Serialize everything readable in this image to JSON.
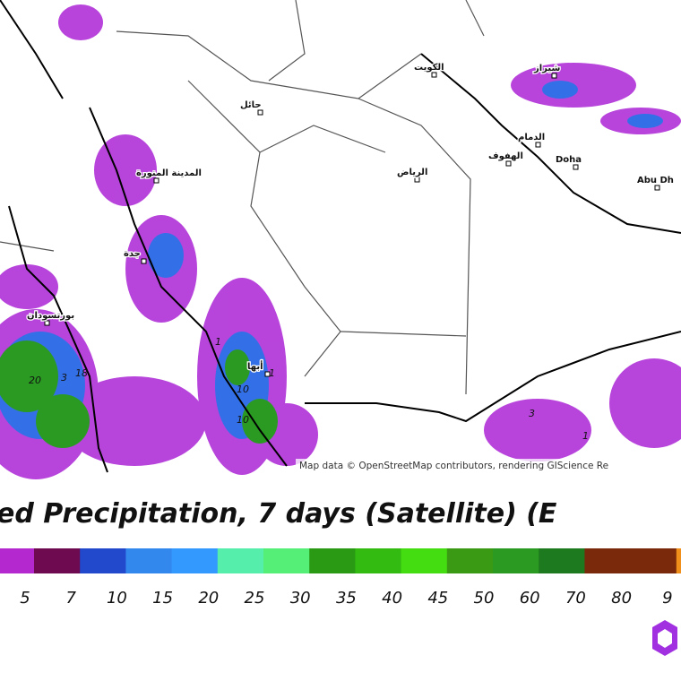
{
  "map": {
    "labels": [
      "المدينة المنورة",
      "الرياض",
      "حائل",
      "بورتسودان",
      "جدة",
      "الكويت",
      "الدمام",
      "الهفوف",
      "Doha",
      "Abu Dh",
      "شيراز",
      "أبها"
    ],
    "contour_labels": [
      "20",
      "3",
      "18",
      "10",
      "10",
      "1",
      "3",
      "1",
      "1"
    ],
    "attribution": "Map data © OpenStreetMap contributors, rendering GIScience Re"
  },
  "title": "ed Precipitation, 7 days (Satellite) (E",
  "legend": {
    "colors": [
      "#b428d0",
      "#6e0a50",
      "#2248cc",
      "#3388ee",
      "#3399ff",
      "#55eeaa",
      "#55ee77",
      "#2a9a14",
      "#33bb11",
      "#44dd11",
      "#3a9a14",
      "#2a9a22",
      "#1e7a1e",
      "#7a2a0a",
      "#7a2a0a",
      "#f0901a"
    ],
    "ticks": [
      "5",
      "7",
      "10",
      "15",
      "20",
      "25",
      "30",
      "35",
      "40",
      "45",
      "50",
      "60",
      "70",
      "80",
      "9"
    ]
  }
}
